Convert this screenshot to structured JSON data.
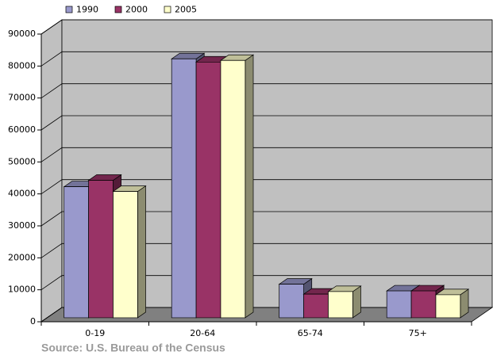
{
  "chart_data": {
    "type": "bar3d",
    "categories": [
      "0-19",
      "20-64",
      "65-74",
      "75+"
    ],
    "series": [
      {
        "name": "1990",
        "color": "#9999cc",
        "values": [
          41000,
          81000,
          10500,
          8400
        ]
      },
      {
        "name": "2000",
        "color": "#993366",
        "values": [
          43000,
          80000,
          7400,
          8400
        ]
      },
      {
        "name": "2005",
        "color": "#ffffcc",
        "values": [
          39500,
          80500,
          8200,
          7200
        ]
      }
    ],
    "ylim": [
      0,
      90000
    ],
    "yticks": [
      0,
      10000,
      20000,
      30000,
      40000,
      50000,
      60000,
      70000,
      80000,
      90000
    ],
    "grid": true,
    "legend": "top",
    "source": "Source: U.S. Bureau of the Census"
  }
}
